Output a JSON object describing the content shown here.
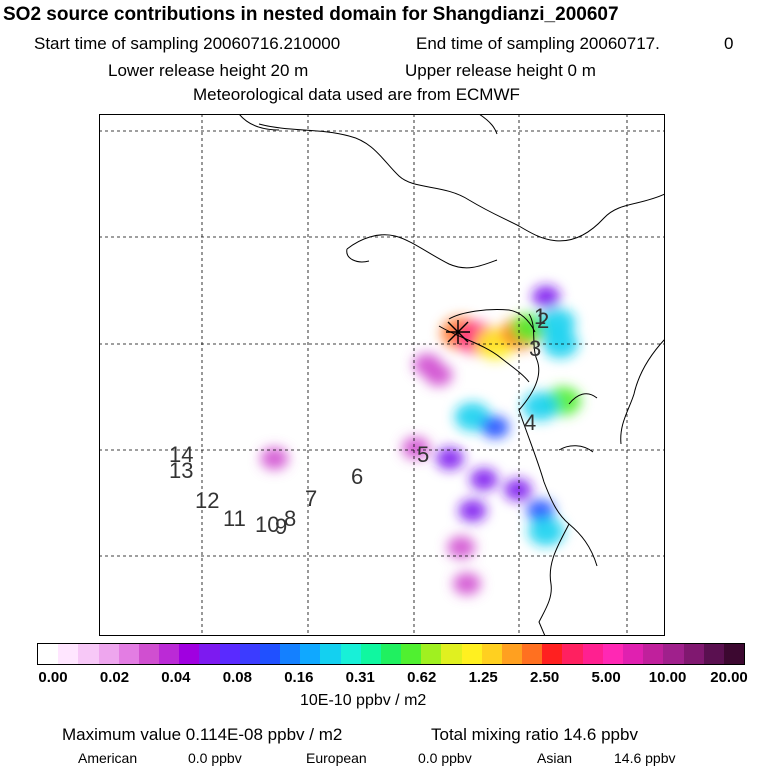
{
  "header": {
    "title": "SO2 source contributions in nested domain for Shangdianzi_200607",
    "start_label": "Start time of sampling 20060716.210000",
    "end_label": "End time of sampling 20060717.",
    "end_suffix": "0",
    "lower_release": "Lower release height   20 m",
    "upper_release": "Upper release height    0 m",
    "met_data": "Meteorological data used are from ECMWF"
  },
  "map": {
    "marker": "star-icon",
    "trajectory_labels": [
      "1",
      "2",
      "3",
      "4",
      "5",
      "6",
      "7",
      "8",
      "9",
      "10",
      "11",
      "12",
      "13",
      "14"
    ],
    "plume_cells": [
      {
        "rx": 0.64,
        "ry": 0.42,
        "v": 1.25
      },
      {
        "rx": 0.67,
        "ry": 0.43,
        "v": 2.5
      },
      {
        "rx": 0.7,
        "ry": 0.44,
        "v": 0.62
      },
      {
        "rx": 0.745,
        "ry": 0.42,
        "v": 1.25
      },
      {
        "rx": 0.76,
        "ry": 0.41,
        "v": 0.31
      },
      {
        "rx": 0.81,
        "ry": 0.4,
        "v": 0.16
      },
      {
        "rx": 0.815,
        "ry": 0.44,
        "v": 0.16
      },
      {
        "rx": 0.79,
        "ry": 0.35,
        "v": 0.04
      },
      {
        "rx": 0.82,
        "ry": 0.55,
        "v": 0.31
      },
      {
        "rx": 0.78,
        "ry": 0.56,
        "v": 0.16
      },
      {
        "rx": 0.66,
        "ry": 0.58,
        "v": 0.16
      },
      {
        "rx": 0.7,
        "ry": 0.6,
        "v": 0.08
      },
      {
        "rx": 0.62,
        "ry": 0.66,
        "v": 0.04
      },
      {
        "rx": 0.56,
        "ry": 0.64,
        "v": 0.02
      },
      {
        "rx": 0.68,
        "ry": 0.7,
        "v": 0.04
      },
      {
        "rx": 0.74,
        "ry": 0.72,
        "v": 0.04
      },
      {
        "rx": 0.78,
        "ry": 0.76,
        "v": 0.08
      },
      {
        "rx": 0.79,
        "ry": 0.8,
        "v": 0.16
      },
      {
        "rx": 0.66,
        "ry": 0.76,
        "v": 0.04
      },
      {
        "rx": 0.64,
        "ry": 0.83,
        "v": 0.02
      },
      {
        "rx": 0.6,
        "ry": 0.5,
        "v": 0.02
      },
      {
        "rx": 0.58,
        "ry": 0.48,
        "v": 0.02
      },
      {
        "rx": 0.65,
        "ry": 0.9,
        "v": 0.02
      },
      {
        "rx": 0.31,
        "ry": 0.66,
        "v": 0.02
      }
    ]
  },
  "colorbar": {
    "colors": [
      "#ffffff",
      "#ffe6ff",
      "#f7c8f7",
      "#eea6ee",
      "#e37de3",
      "#d04fd0",
      "#bb2ad6",
      "#a000e0",
      "#7d1af0",
      "#5a2aff",
      "#3c3cff",
      "#2050ff",
      "#1480ff",
      "#10a8ff",
      "#14d0f0",
      "#18f0d8",
      "#10f7a0",
      "#20f060",
      "#50f030",
      "#a0f020",
      "#e0f020",
      "#fff020",
      "#ffd020",
      "#ffa020",
      "#ff7020",
      "#ff2020",
      "#ff2060",
      "#ff2090",
      "#ff28b4",
      "#e020b0",
      "#c0209c",
      "#a0208c",
      "#801870",
      "#5a1050",
      "#3c0830"
    ],
    "ticks": [
      "0.00",
      "0.02",
      "0.04",
      "0.08",
      "0.16",
      "0.31",
      "0.62",
      "1.25",
      "2.50",
      "5.00",
      "10.00",
      "20.00"
    ],
    "units": "10E-10 ppbv / m2"
  },
  "stats": {
    "max_value": "Maximum value  0.114E-08 ppbv / m2",
    "total_mixing": "Total mixing ratio       14.6 ppbv",
    "american_label": "American",
    "american_value": "0.0 ppbv",
    "european_label": "European",
    "european_value": "0.0 ppbv",
    "asian_label": "Asian",
    "asian_value": "14.6 ppbv"
  }
}
